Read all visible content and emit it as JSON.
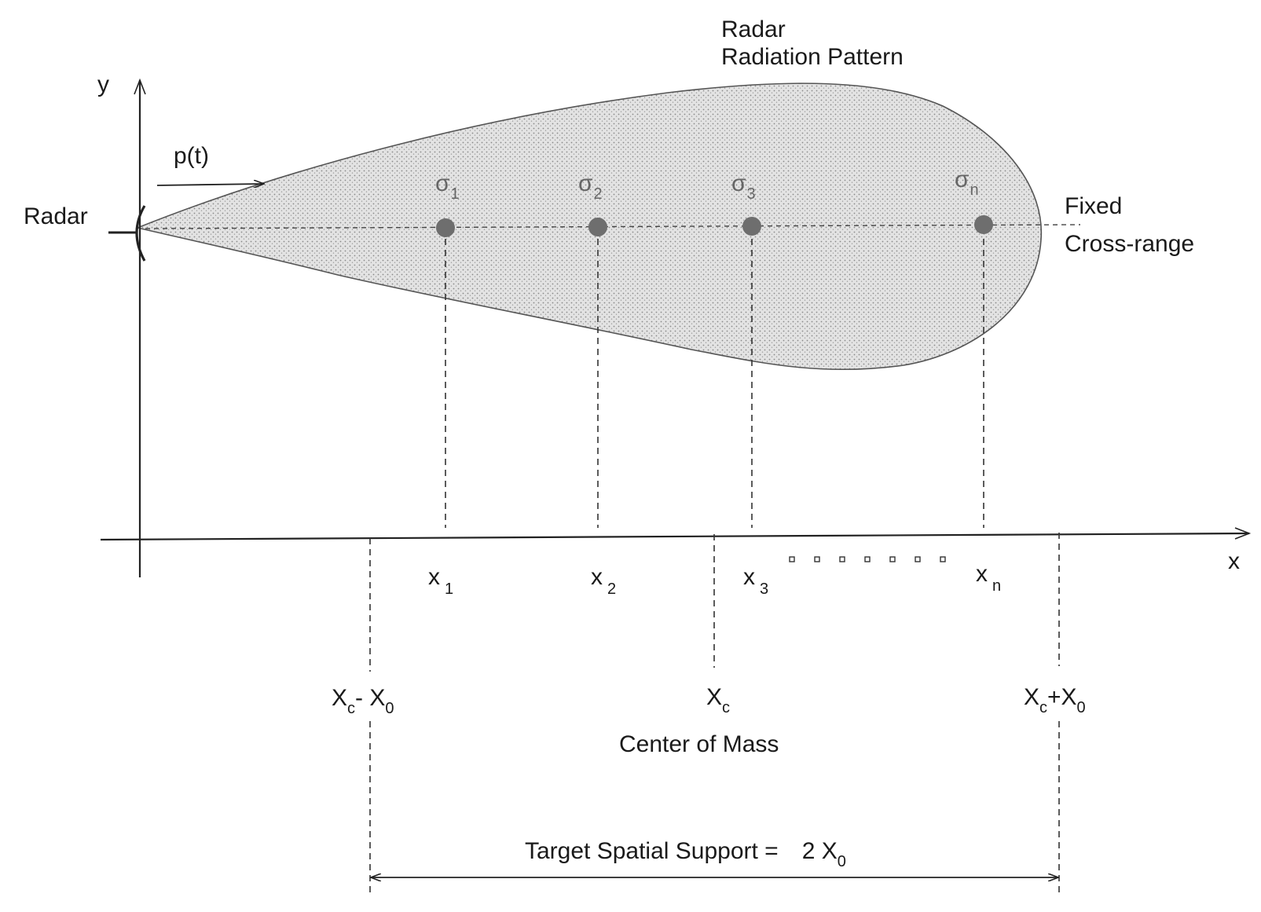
{
  "labels": {
    "pattern_line1": "Radar",
    "pattern_line2": "Radiation Pattern",
    "y_axis": "y",
    "x_axis": "x",
    "radar": "Radar",
    "pulse": "p(t)",
    "fixed_line1": "Fixed",
    "fixed_line2": "Cross-range",
    "center_of_mass": "Center of Mass",
    "support_text": "Target Spatial Support =",
    "support_value": "2 X",
    "support_value_sub": "0"
  },
  "scatterers": [
    {
      "sigma": "σ",
      "sigma_sub": "1",
      "x": "x",
      "x_sub": "1"
    },
    {
      "sigma": "σ",
      "sigma_sub": "2",
      "x": "x",
      "x_sub": "2"
    },
    {
      "sigma": "σ",
      "sigma_sub": "3",
      "x": "x",
      "x_sub": "3"
    },
    {
      "sigma": "σ",
      "sigma_sub": "n",
      "x": "x",
      "x_sub": "n"
    }
  ],
  "markers": {
    "left_main": "X",
    "left_sub": "c",
    "left_op": "- X",
    "left_sub2": "0",
    "center_main": "X",
    "center_sub": "c",
    "right_main": "X",
    "right_sub": "c",
    "right_op": "+X",
    "right_sub2": "0"
  },
  "colors": {
    "pattern_fill": "#d6d6d6",
    "dot": "#6e6e6e",
    "ink": "#1a1a1a"
  }
}
